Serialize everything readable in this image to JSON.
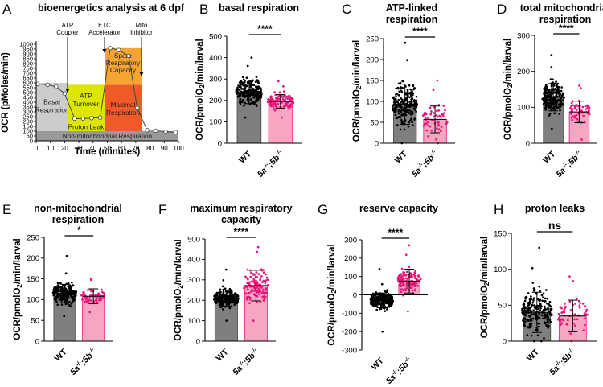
{
  "chart_data": [
    {
      "panel": "A",
      "type": "line",
      "title": "bioenergetics analysis at 6 dpf",
      "xlabel": "Time (minutes)",
      "ylabel": "OCR (pMoles/min)",
      "xlim": [
        0,
        100
      ],
      "ylim": [
        0,
        1000
      ],
      "xticks": [
        0,
        10,
        20,
        30,
        40,
        50,
        60,
        70,
        80,
        90,
        100
      ],
      "yticks": [
        0,
        50,
        100,
        150,
        200,
        250,
        300,
        350,
        400,
        450,
        500,
        550,
        600,
        650,
        700,
        750,
        800,
        850,
        900,
        950,
        1000
      ],
      "series": [
        {
          "x": [
            1,
            8,
            14,
            20,
            27,
            33,
            39,
            45,
            52,
            58,
            65,
            71,
            78,
            84,
            91,
            98
          ],
          "y": [
            590,
            580,
            560,
            490,
            230,
            230,
            235,
            240,
            960,
            940,
            880,
            340,
            110,
            105,
            95,
            90
          ]
        }
      ],
      "annotations": [
        "ATP Coupler",
        "ETC Accelerator",
        "Mito Inhibitor"
      ],
      "regions": [
        {
          "label": "Basal Respiration",
          "color": "#cccccc"
        },
        {
          "label": "ATP Turnover",
          "color": "#dde600"
        },
        {
          "label": "Proton Leak",
          "color": "#dde600"
        },
        {
          "label": "Maximal Respiration",
          "color": "#f05a28"
        },
        {
          "label": "Spare Respiratory Capacity",
          "color": "#f7a531"
        },
        {
          "label": "Non-mitochondrial Respiration",
          "color": "#999999"
        }
      ]
    },
    {
      "panel": "B",
      "type": "bar",
      "title": [
        "basal respiration"
      ],
      "ylabel": "OCR/pmolO2/min/larval",
      "categories": [
        "WT",
        "5a-/-;5b-/-"
      ],
      "values": [
        240,
        195
      ],
      "errors": [
        55,
        32
      ],
      "spread": [
        [
          120,
          400
        ],
        [
          120,
          290
        ]
      ],
      "n": [
        220,
        120
      ],
      "ylim": [
        0,
        500
      ],
      "yticks": [
        0,
        100,
        200,
        300,
        400,
        500
      ],
      "significance": "****"
    },
    {
      "panel": "C",
      "type": "bar",
      "title": [
        "ATP-linked",
        "respiration"
      ],
      "ylabel": "OCR/pmolO2/min/larval",
      "categories": [
        "WT",
        "5a-/-;5b-/-"
      ],
      "values": [
        93,
        57
      ],
      "errors": [
        48,
        32
      ],
      "spread": [
        [
          0,
          240
        ],
        [
          0,
          150
        ]
      ],
      "n": [
        220,
        60
      ],
      "ylim": [
        0,
        250
      ],
      "yticks": [
        0,
        50,
        100,
        150,
        200,
        250
      ],
      "significance": "****"
    },
    {
      "panel": "D",
      "type": "bar",
      "title": [
        "total mitochondrial",
        "respiration"
      ],
      "ylabel": "OCR/pmolO2/min/larval",
      "categories": [
        "WT",
        "5a-/-;5b-/-"
      ],
      "values": [
        128,
        87
      ],
      "errors": [
        38,
        30
      ],
      "spread": [
        [
          40,
          245
        ],
        [
          10,
          160
        ]
      ],
      "n": [
        220,
        60
      ],
      "ylim": [
        0,
        300
      ],
      "yticks": [
        0,
        100,
        200,
        300
      ],
      "significance": "****"
    },
    {
      "panel": "E",
      "type": "bar",
      "title": [
        "non-mitochondrial",
        "respiration"
      ],
      "ylabel": "OCR/pmolO2/min/larval",
      "categories": [
        "WT",
        "5a-/-;5b-/-"
      ],
      "values": [
        115,
        108
      ],
      "errors": [
        22,
        18
      ],
      "spread": [
        [
          60,
          205
        ],
        [
          70,
          150
        ]
      ],
      "n": [
        220,
        60
      ],
      "ylim": [
        0,
        250
      ],
      "yticks": [
        0,
        50,
        100,
        150,
        200,
        250
      ],
      "significance": "*"
    },
    {
      "panel": "F",
      "type": "bar",
      "title": [
        "maximum respiratory",
        "capacity"
      ],
      "ylabel": "OCR/pmolO2/min/larval",
      "categories": [
        "WT",
        "5a-/-;5b-/-"
      ],
      "values": [
        210,
        272
      ],
      "errors": [
        40,
        75
      ],
      "spread": [
        [
          100,
          350
        ],
        [
          100,
          460
        ]
      ],
      "n": [
        240,
        120
      ],
      "ylim": [
        0,
        500
      ],
      "yticks": [
        0,
        100,
        200,
        300,
        400,
        500
      ],
      "significance": "****"
    },
    {
      "panel": "G",
      "type": "bar",
      "title": [
        "reserve capacity"
      ],
      "ylabel": "OCR/pmolO2/min/larval",
      "categories": [
        "WT",
        "5a-/-;5b-/-"
      ],
      "values": [
        -30,
        75
      ],
      "errors": [
        40,
        65
      ],
      "spread": [
        [
          -200,
          140
        ],
        [
          -90,
          270
        ]
      ],
      "n": [
        240,
        120
      ],
      "ylim": [
        -300,
        300
      ],
      "yticks": [
        -300,
        -200,
        -100,
        0,
        100,
        200,
        300
      ],
      "significance": "****"
    },
    {
      "panel": "H",
      "type": "bar",
      "title": [
        "proton leaks"
      ],
      "ylabel": "OCR/pmolO2/min/larval",
      "categories": [
        "WT",
        "5a-/-;5b-/-"
      ],
      "values": [
        40,
        35
      ],
      "errors": [
        28,
        22
      ],
      "spread": [
        [
          0,
          130
        ],
        [
          0,
          90
        ]
      ],
      "n": [
        220,
        60
      ],
      "ylim": [
        0,
        150
      ],
      "yticks": [
        0,
        50,
        100,
        150
      ],
      "significance": "ns"
    }
  ],
  "colors": {
    "wt_bar": "#7f7f7f",
    "wt_dots": "#000000",
    "mut_bar": "#f6a5c3",
    "mut_dots": "#e8157a"
  }
}
